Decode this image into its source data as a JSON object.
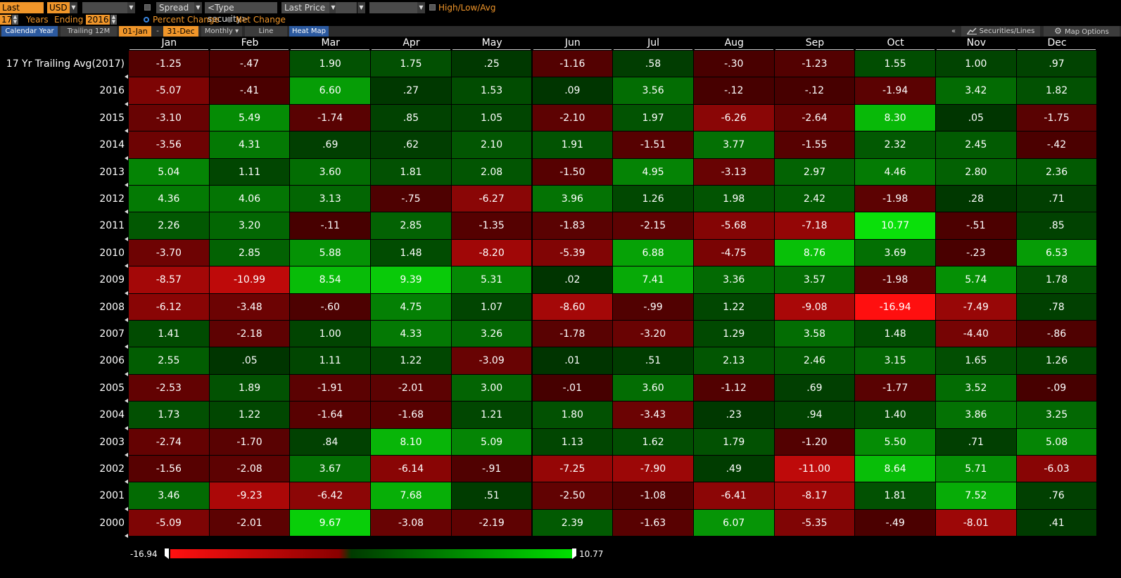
{
  "toolbar": {
    "field": "Last Price",
    "currency": "USD",
    "blank1": "",
    "spread": "Spread",
    "security_placeholder": "<Type security>",
    "field2": "Last Price",
    "high_low_avg": "High/Low/Avg",
    "years": "17",
    "years_label": "Years",
    "ending_label": "Ending",
    "ending_year": "2016",
    "percent_change": "Percent Change",
    "net_change": "Net Change"
  },
  "tabs": {
    "calendar_year": "Calendar Year",
    "trailing_12m": "Trailing 12M",
    "start_date": "01-Jan",
    "dash": "-",
    "end_date": "31-Dec",
    "frequency": "Monthly",
    "line": "Line",
    "heat_map": "Heat Map",
    "collapse": "«",
    "securities_lines": "Securities/Lines",
    "map_options": "Map Options"
  },
  "months": [
    "Jan",
    "Feb",
    "Mar",
    "Apr",
    "May",
    "Jun",
    "Jul",
    "Aug",
    "Sep",
    "Oct",
    "Nov",
    "Dec"
  ],
  "rows": [
    {
      "label": "17 Yr Trailing Avg(2017)",
      "values": [
        "-1.25",
        "-.47",
        "1.90",
        "1.75",
        ".25",
        "-1.16",
        ".58",
        "-.30",
        "-1.23",
        "1.55",
        "1.00",
        ".97"
      ]
    },
    {
      "label": "2016",
      "values": [
        "-5.07",
        "-.41",
        "6.60",
        ".27",
        "1.53",
        ".09",
        "3.56",
        "-.12",
        "-.12",
        "-1.94",
        "3.42",
        "1.82"
      ]
    },
    {
      "label": "2015",
      "values": [
        "-3.10",
        "5.49",
        "-1.74",
        ".85",
        "1.05",
        "-2.10",
        "1.97",
        "-6.26",
        "-2.64",
        "8.30",
        ".05",
        "-1.75"
      ]
    },
    {
      "label": "2014",
      "values": [
        "-3.56",
        "4.31",
        ".69",
        ".62",
        "2.10",
        "1.91",
        "-1.51",
        "3.77",
        "-1.55",
        "2.32",
        "2.45",
        "-.42"
      ]
    },
    {
      "label": "2013",
      "values": [
        "5.04",
        "1.11",
        "3.60",
        "1.81",
        "2.08",
        "-1.50",
        "4.95",
        "-3.13",
        "2.97",
        "4.46",
        "2.80",
        "2.36"
      ]
    },
    {
      "label": "2012",
      "values": [
        "4.36",
        "4.06",
        "3.13",
        "-.75",
        "-6.27",
        "3.96",
        "1.26",
        "1.98",
        "2.42",
        "-1.98",
        ".28",
        ".71"
      ]
    },
    {
      "label": "2011",
      "values": [
        "2.26",
        "3.20",
        "-.11",
        "2.85",
        "-1.35",
        "-1.83",
        "-2.15",
        "-5.68",
        "-7.18",
        "10.77",
        "-.51",
        ".85"
      ]
    },
    {
      "label": "2010",
      "values": [
        "-3.70",
        "2.85",
        "5.88",
        "1.48",
        "-8.20",
        "-5.39",
        "6.88",
        "-4.75",
        "8.76",
        "3.69",
        "-.23",
        "6.53"
      ]
    },
    {
      "label": "2009",
      "values": [
        "-8.57",
        "-10.99",
        "8.54",
        "9.39",
        "5.31",
        ".02",
        "7.41",
        "3.36",
        "3.57",
        "-1.98",
        "5.74",
        "1.78"
      ]
    },
    {
      "label": "2008",
      "values": [
        "-6.12",
        "-3.48",
        "-.60",
        "4.75",
        "1.07",
        "-8.60",
        "-.99",
        "1.22",
        "-9.08",
        "-16.94",
        "-7.49",
        ".78"
      ]
    },
    {
      "label": "2007",
      "values": [
        "1.41",
        "-2.18",
        "1.00",
        "4.33",
        "3.26",
        "-1.78",
        "-3.20",
        "1.29",
        "3.58",
        "1.48",
        "-4.40",
        "-.86"
      ]
    },
    {
      "label": "2006",
      "values": [
        "2.55",
        ".05",
        "1.11",
        "1.22",
        "-3.09",
        ".01",
        ".51",
        "2.13",
        "2.46",
        "3.15",
        "1.65",
        "1.26"
      ]
    },
    {
      "label": "2005",
      "values": [
        "-2.53",
        "1.89",
        "-1.91",
        "-2.01",
        "3.00",
        "-.01",
        "3.60",
        "-1.12",
        ".69",
        "-1.77",
        "3.52",
        "-.09"
      ]
    },
    {
      "label": "2004",
      "values": [
        "1.73",
        "1.22",
        "-1.64",
        "-1.68",
        "1.21",
        "1.80",
        "-3.43",
        ".23",
        ".94",
        "1.40",
        "3.86",
        "3.25"
      ]
    },
    {
      "label": "2003",
      "values": [
        "-2.74",
        "-1.70",
        ".84",
        "8.10",
        "5.09",
        "1.13",
        "1.62",
        "1.79",
        "-1.20",
        "5.50",
        ".71",
        "5.08"
      ]
    },
    {
      "label": "2002",
      "values": [
        "-1.56",
        "-2.08",
        "3.67",
        "-6.14",
        "-.91",
        "-7.25",
        "-7.90",
        ".49",
        "-11.00",
        "8.64",
        "5.71",
        "-6.03"
      ]
    },
    {
      "label": "2001",
      "values": [
        "3.46",
        "-9.23",
        "-6.42",
        "7.68",
        ".51",
        "-2.50",
        "-1.08",
        "-6.41",
        "-8.17",
        "1.81",
        "7.52",
        ".76"
      ]
    },
    {
      "label": "2000",
      "values": [
        "-5.09",
        "-2.01",
        "9.67",
        "-3.08",
        "-2.19",
        "2.39",
        "-1.63",
        "6.07",
        "-5.35",
        "-.49",
        "-8.01",
        ".41"
      ]
    }
  ],
  "scale": {
    "min": "-16.94",
    "max": "10.77"
  },
  "colors": {
    "positive_max": "#00e000",
    "negative_max": "#ff1010",
    "accent": "#f0962a",
    "tab_active": "#2c5aa0"
  }
}
